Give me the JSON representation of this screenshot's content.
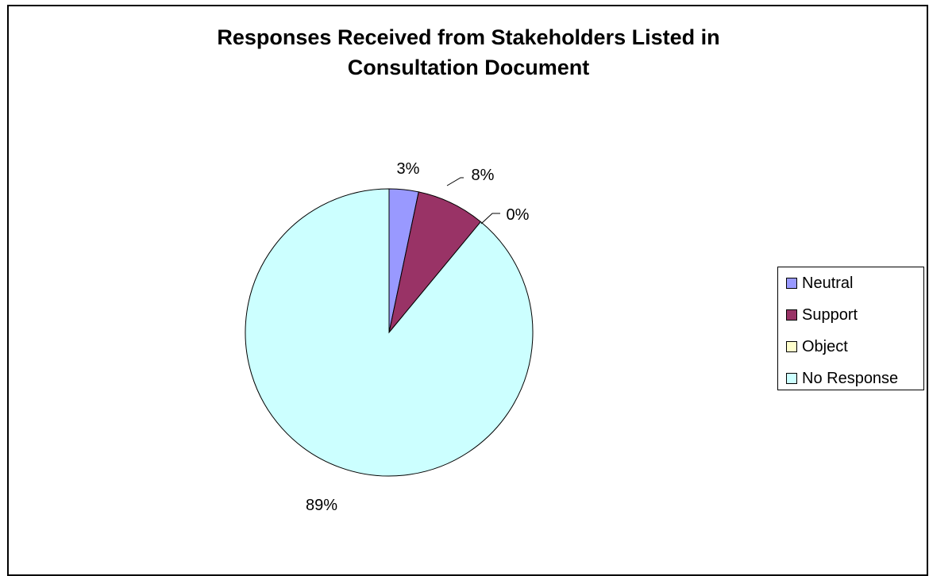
{
  "chart_data": {
    "type": "pie",
    "title": "Responses Received from Stakeholders Listed in Consultation Document",
    "title_lines": [
      "Responses Received from Stakeholders Listed in",
      "Consultation Document"
    ],
    "categories": [
      "Neutral",
      "Support",
      "Object",
      "No Response"
    ],
    "values": [
      3.3,
      7.7,
      0,
      89
    ],
    "data_labels": [
      "3%",
      "8%",
      "0%",
      "89%"
    ],
    "colors": [
      "#9999ff",
      "#993366",
      "#ffffcc",
      "#ccffff"
    ],
    "legend_position": "right",
    "start_angle": "12 o'clock",
    "direction": "clockwise"
  }
}
